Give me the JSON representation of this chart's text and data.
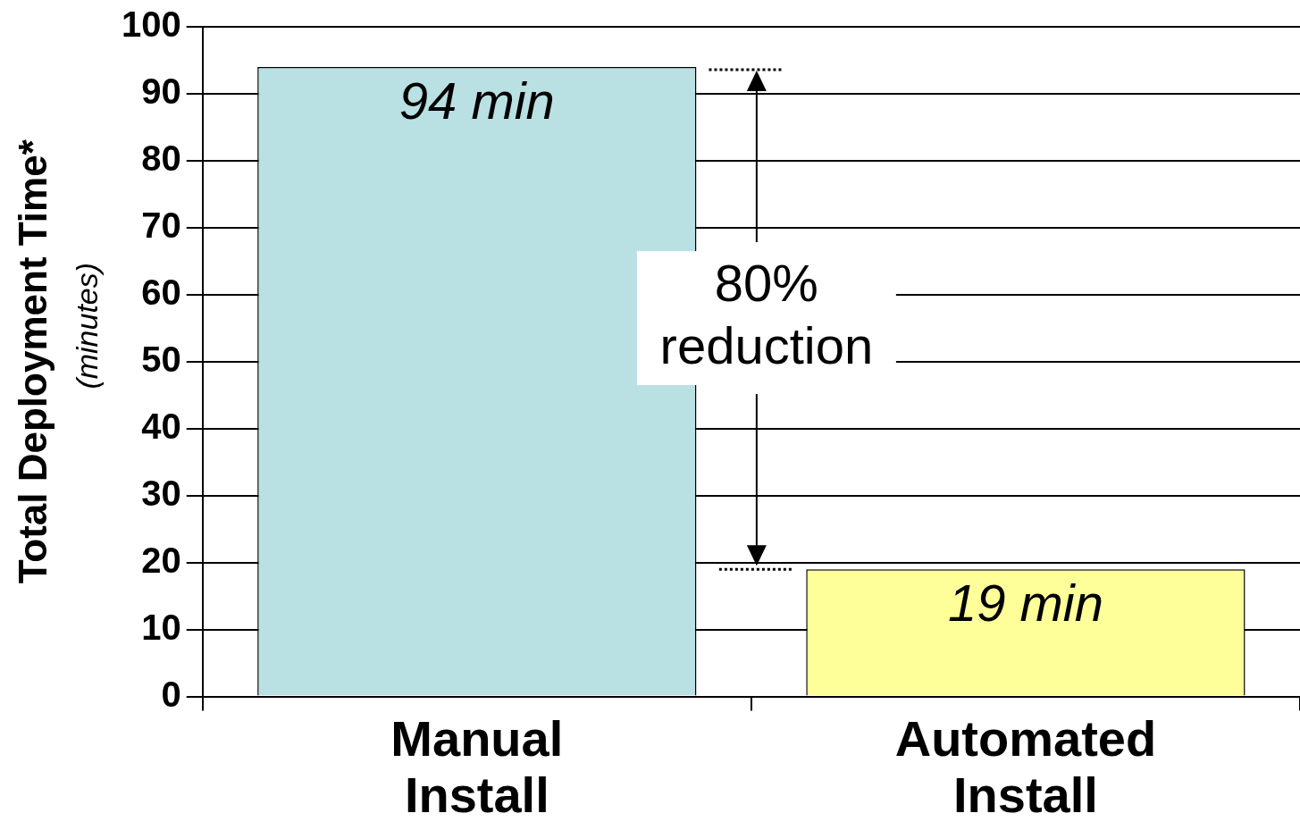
{
  "chart_data": {
    "type": "bar",
    "ylabel": "Total Deployment Time* (minutes)",
    "categories": [
      "Manual Install",
      "Automated Install"
    ],
    "values": [
      94,
      19
    ],
    "colors": [
      "#b9e0e2",
      "#ffff99"
    ],
    "value_labels": [
      "94 min",
      "19 min"
    ],
    "ylim": [
      0,
      100
    ],
    "yticks": [
      0,
      10,
      20,
      30,
      40,
      50,
      60,
      70,
      80,
      90,
      100
    ],
    "grid": "y",
    "legend": false,
    "annotations": [
      "80% reduction"
    ]
  }
}
